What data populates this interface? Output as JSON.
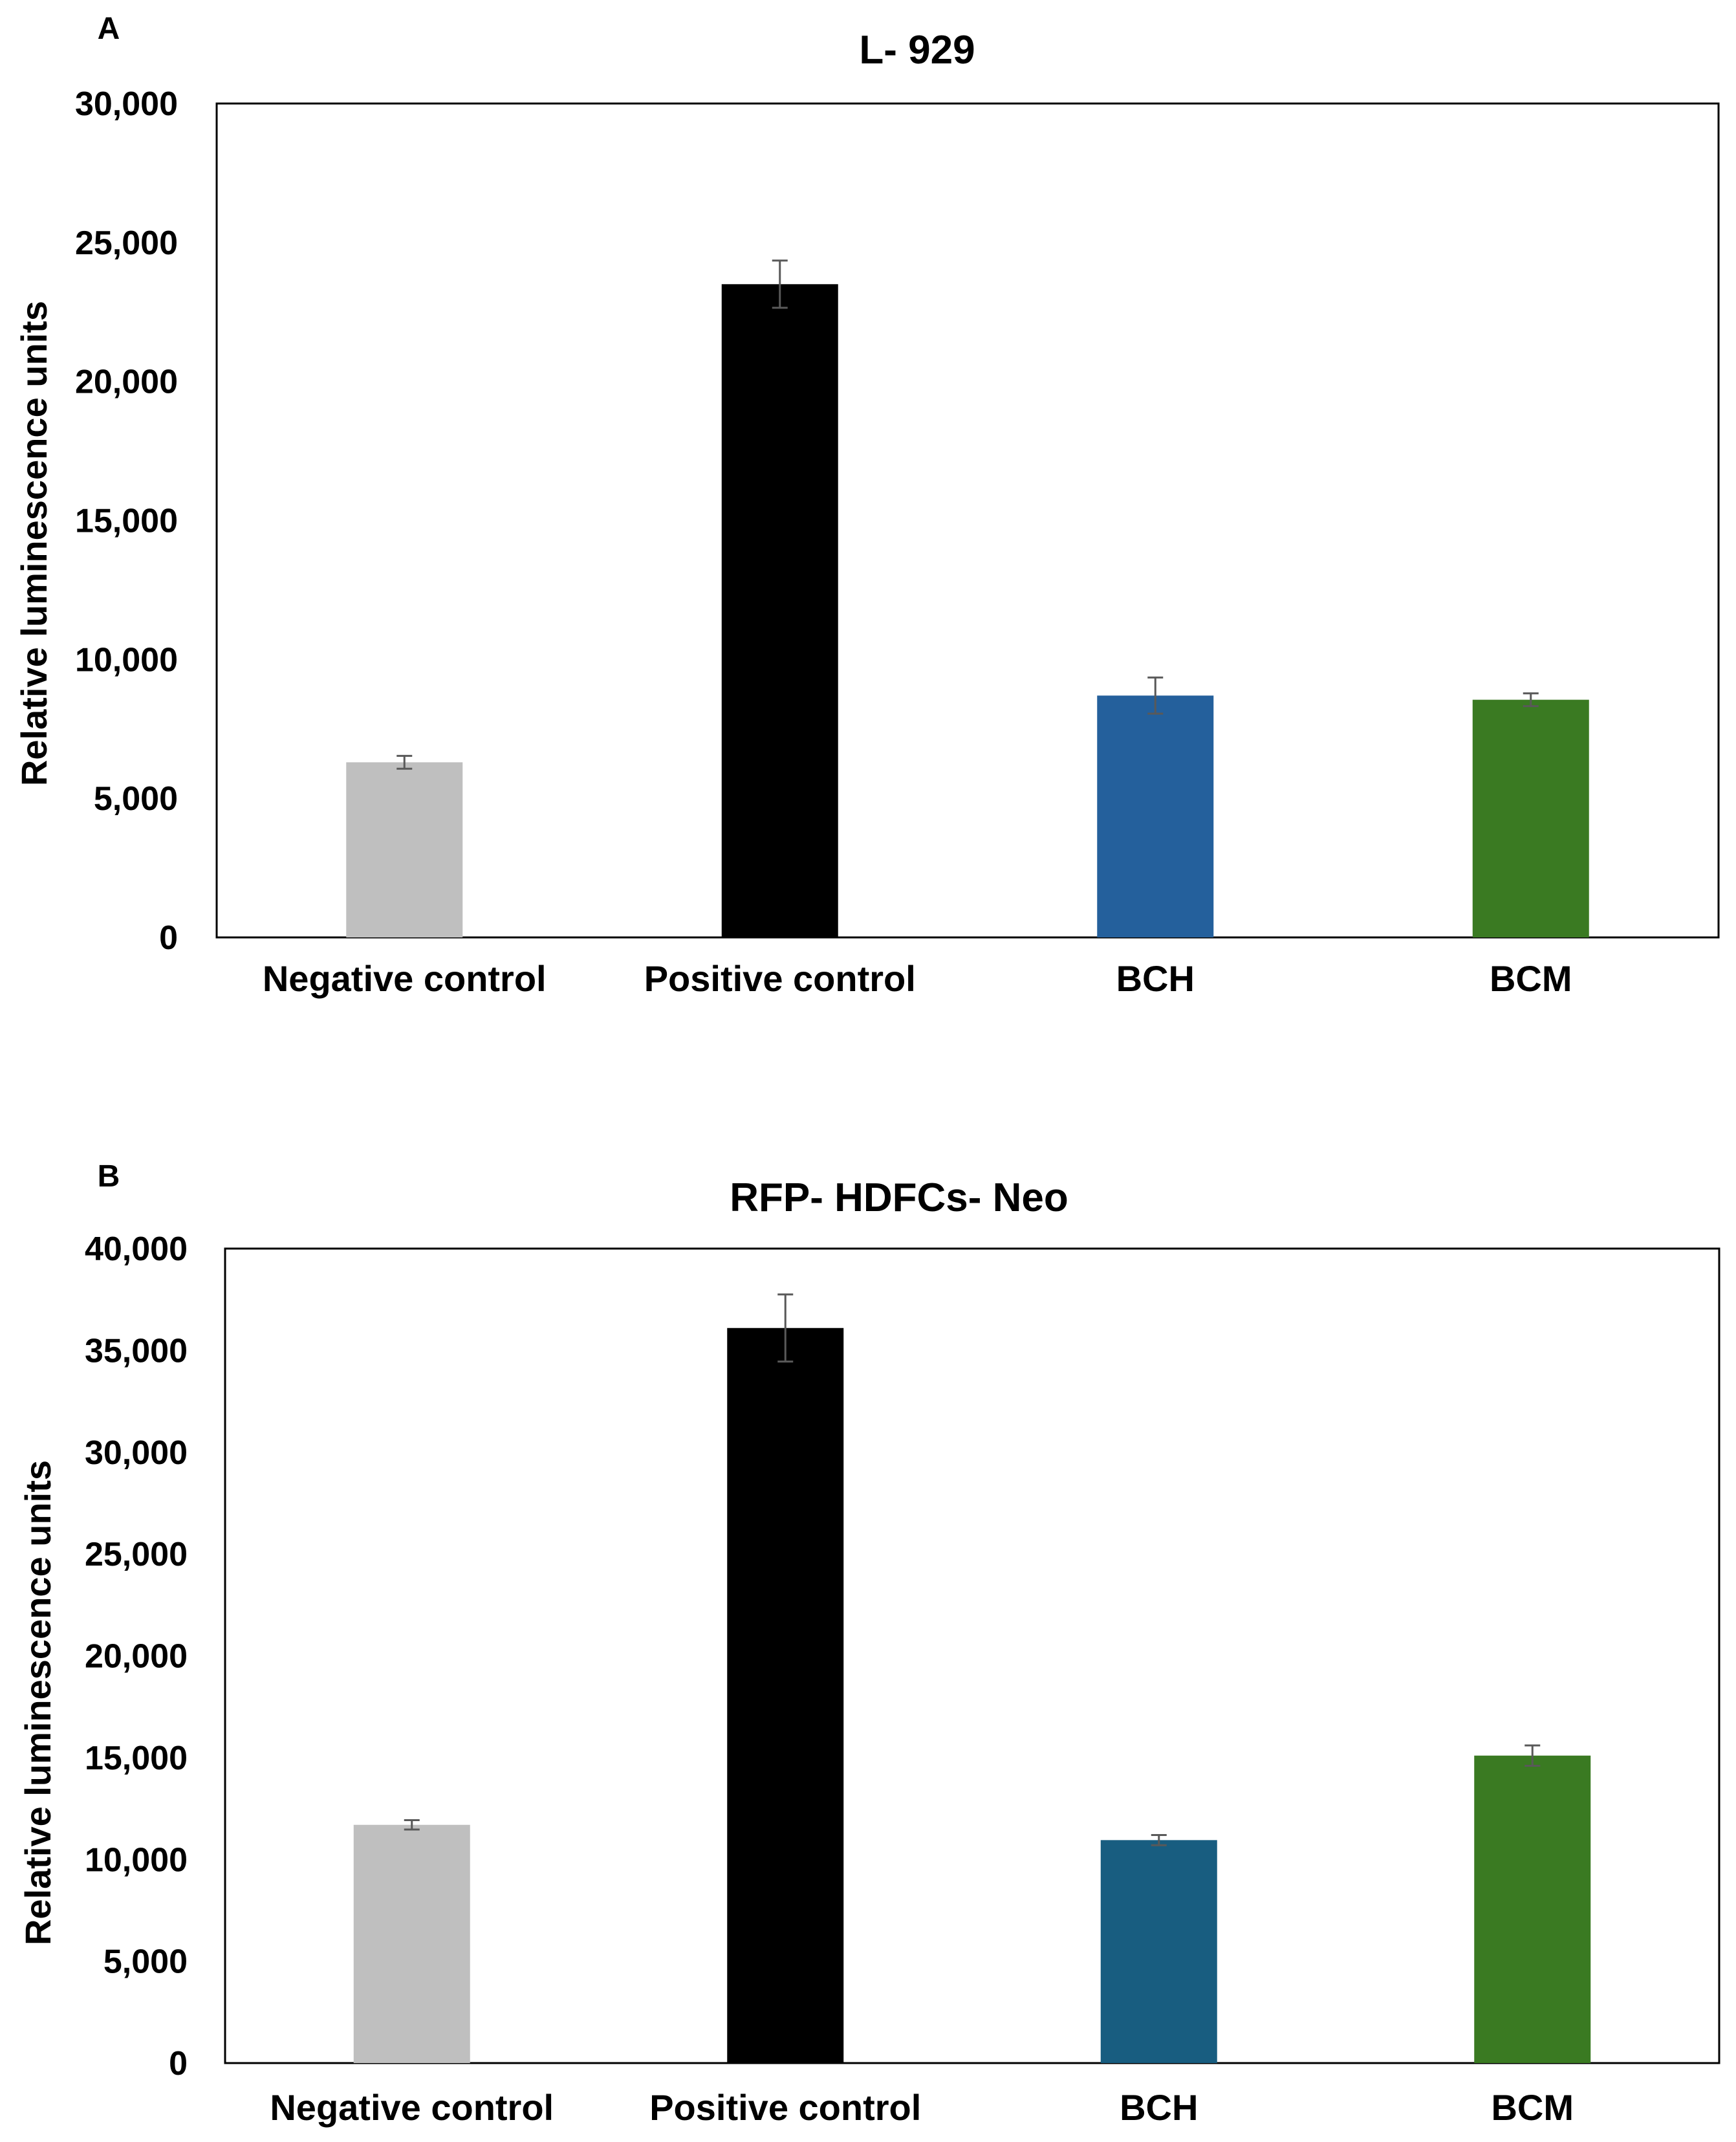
{
  "chart_data": [
    {
      "type": "bar",
      "panel_label": "A",
      "title": "L- 929",
      "xlabel": "",
      "ylabel": "Relative luminescence units",
      "categories": [
        "Negative control",
        "Positive control",
        "BCH",
        "BCM"
      ],
      "values": [
        6300,
        23500,
        8700,
        8550
      ],
      "errors": [
        230,
        850,
        650,
        230
      ],
      "colors": [
        "#bfbfbf",
        "#000000",
        "#24609c",
        "#3a7a22"
      ],
      "ylim": [
        0,
        30000
      ],
      "yticks": [
        0,
        5000,
        10000,
        15000,
        20000,
        25000,
        30000
      ],
      "ytick_labels": [
        "0",
        "5,000",
        "10,000",
        "15,000",
        "20,000",
        "25,000",
        "30,000"
      ],
      "grid": false,
      "legend": "none"
    },
    {
      "type": "bar",
      "panel_label": "B",
      "title": "RFP- HDFCs- Neo",
      "xlabel": "",
      "ylabel": "Relative luminescence  units",
      "categories": [
        "Negative control",
        "Positive control",
        "BCH",
        "BCM"
      ],
      "values": [
        11700,
        36100,
        10950,
        15100
      ],
      "errors": [
        230,
        1650,
        250,
        500
      ],
      "colors": [
        "#bfbfbf",
        "#000000",
        "#185d80",
        "#3a7a22"
      ],
      "ylim": [
        0,
        40000
      ],
      "yticks": [
        0,
        5000,
        10000,
        15000,
        20000,
        25000,
        30000,
        35000,
        40000
      ],
      "ytick_labels": [
        "0",
        "5,000",
        "10,000",
        "15,000",
        "20,000",
        "25,000",
        "30,000",
        "35,000",
        "40,000"
      ],
      "grid": false,
      "legend": "none"
    }
  ]
}
